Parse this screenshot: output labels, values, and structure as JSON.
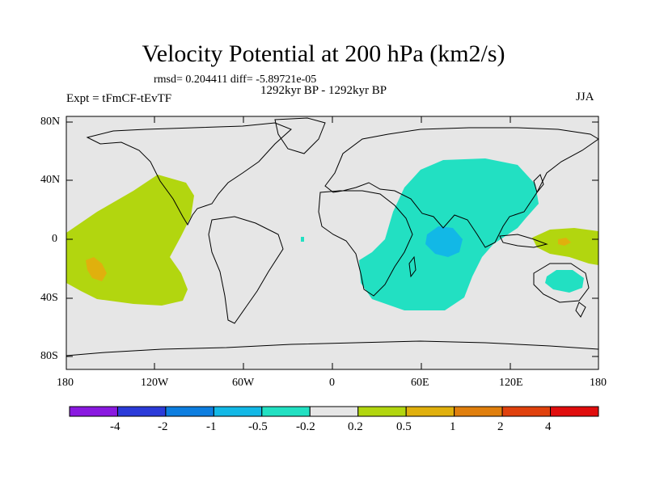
{
  "title": "Velocity Potential at 200 hPa (km2/s)",
  "stats": "rmsd= 0.204411 diff= -5.89721e-05",
  "period": "1292kyr BP - 1292kyr BP",
  "experiment": "Expt = tFmCF-tEvTF",
  "season": "JJA",
  "axes": {
    "lat_labels": [
      "80N",
      "40N",
      "0",
      "40S",
      "80S"
    ],
    "lon_labels": [
      "180",
      "120W",
      "60W",
      "0",
      "60E",
      "120E",
      "180"
    ]
  },
  "colorbar": {
    "colors": [
      "#8a19e0",
      "#2b3bd9",
      "#0d7ee0",
      "#12b8e6",
      "#22e0c2",
      "#e6e6e6",
      "#b2d60f",
      "#e0b00d",
      "#e07f0d",
      "#e0410d",
      "#e00d0d"
    ],
    "labels": [
      "-4",
      "-2",
      "-1",
      "-0.5",
      "-0.2",
      "0.2",
      "0.5",
      "1",
      "2",
      "4"
    ]
  },
  "field_colors": {
    "background": "#e6e6e6",
    "positive_weak": "#b2d60f",
    "positive_mid": "#e0b00d",
    "negative_weak": "#22e0c2",
    "negative_mid": "#12b8e6"
  }
}
